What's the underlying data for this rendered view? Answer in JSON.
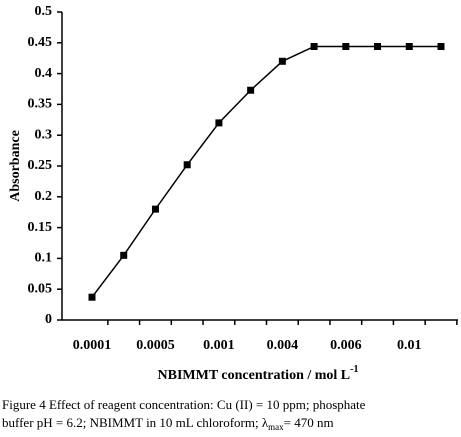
{
  "chart_data": {
    "type": "line",
    "y_label": "Absorbance",
    "x_label": "NBIMMT concentration / mol L",
    "x_label_sup": "-1",
    "categories": [
      "0.0001",
      null,
      "0.0005",
      null,
      "0.001",
      null,
      "0.004",
      null,
      "0.006",
      null,
      "0.01",
      null
    ],
    "series": [
      {
        "color": "#000000",
        "values": [
          0.037,
          0.105,
          0.18,
          0.252,
          0.32,
          0.373,
          0.42,
          0.444,
          0.444,
          0.444,
          0.444,
          0.444
        ]
      }
    ],
    "ylim": [
      0,
      0.5
    ],
    "yticks": [
      0,
      0.05,
      0.1,
      0.15,
      0.2,
      0.25,
      0.3,
      0.35,
      0.4,
      0.45,
      0.5
    ],
    "caption": {
      "label": "Figure 4",
      "line1": "Effect of reagent concentration: Cu (II) = 10 ppm; phosphate",
      "line2": "buffer pH = 6.2; NBIMMT in 10 mL chloroform; λ",
      "sub": "max",
      "tail": "= 470 nm"
    }
  }
}
